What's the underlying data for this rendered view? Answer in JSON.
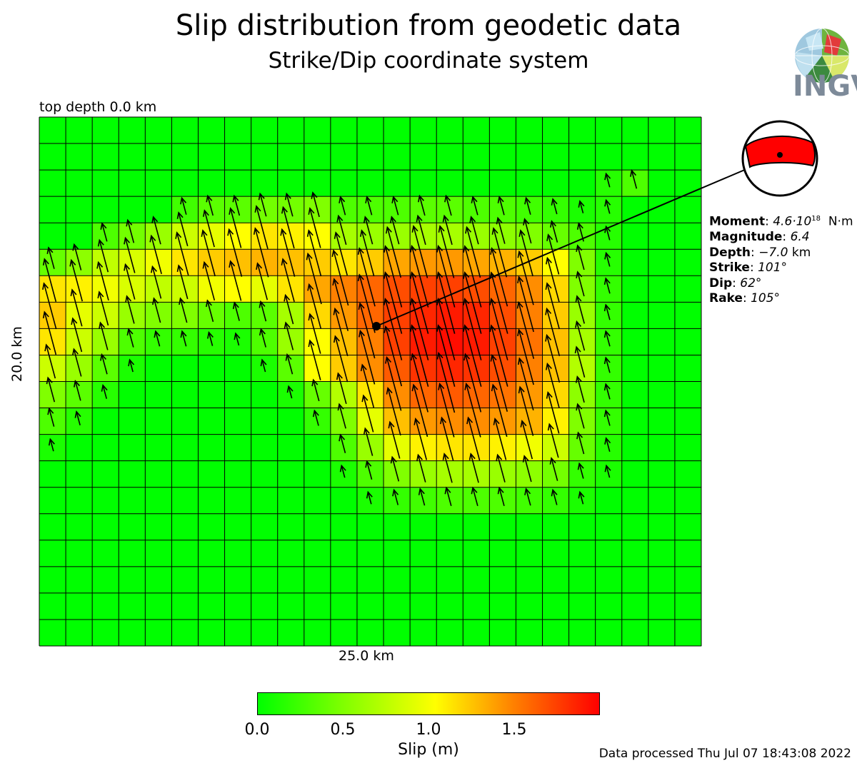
{
  "title": "Slip distribution from geodetic data",
  "subtitle": "Strike/Dip coordinate system",
  "top_depth_label": "top depth 0.0 km",
  "width_label": "25.0 km",
  "height_label": "20.0 km",
  "logo_text": "INGV",
  "info": {
    "moment_key": "Moment",
    "moment_mantissa": "4.6·10",
    "moment_exponent": "18",
    "moment_unit": "N·m",
    "magnitude_key": "Magnitude",
    "magnitude_value": "6.4",
    "depth_key": "Depth",
    "depth_value": "−7.0",
    "depth_unit": "km",
    "strike_key": "Strike",
    "strike_value": "101°",
    "dip_key": "Dip",
    "dip_value": "62°",
    "rake_key": "Rake",
    "rake_value": "105°"
  },
  "colorbar": {
    "label": "Slip (m)",
    "ticks": [
      "0.0",
      "0.5",
      "1.0",
      "1.5"
    ],
    "tick_values": [
      0,
      0.5,
      1.0,
      1.5
    ],
    "max": 2.0,
    "colors": [
      "#00ff00",
      "#80ff00",
      "#ffff00",
      "#ff8000",
      "#ff0000"
    ]
  },
  "footer": "Data processed Thu Jul 07 18:43:08 2022",
  "chart_data": {
    "type": "heatmap",
    "along_strike_km": 25.0,
    "along_dip_km": 20.0,
    "rows": 20,
    "cols": 25,
    "value_unit": "m",
    "rake_deg": 105,
    "hypocenter_cell": {
      "row": 8,
      "col": 12.7
    },
    "slip": [
      [
        0,
        0,
        0,
        0,
        0,
        0,
        0,
        0,
        0,
        0,
        0,
        0,
        0,
        0,
        0,
        0,
        0,
        0,
        0,
        0,
        0,
        0,
        0,
        0,
        0
      ],
      [
        0,
        0,
        0,
        0,
        0,
        0,
        0,
        0,
        0,
        0,
        0,
        0,
        0,
        0,
        0,
        0,
        0,
        0,
        0,
        0,
        0,
        0,
        0,
        0,
        0
      ],
      [
        0,
        0,
        0,
        0,
        0,
        0,
        0,
        0,
        0,
        0,
        0,
        0,
        0,
        0,
        0,
        0,
        0,
        0,
        0,
        0,
        0,
        0.15,
        0.3,
        0,
        0
      ],
      [
        0,
        0,
        0,
        0,
        0,
        0.25,
        0.35,
        0.35,
        0.45,
        0.45,
        0.5,
        0.3,
        0.3,
        0.3,
        0.35,
        0.35,
        0.3,
        0.3,
        0.25,
        0.2,
        0.1,
        0.15,
        0,
        0,
        0
      ],
      [
        0,
        0,
        0.3,
        0.45,
        0.6,
        0.8,
        0.9,
        1.0,
        1.1,
        1.05,
        1.0,
        0.65,
        0.6,
        0.6,
        0.65,
        0.65,
        0.6,
        0.55,
        0.5,
        0.4,
        0.3,
        0.15,
        0,
        0,
        0
      ],
      [
        0.4,
        0.55,
        0.75,
        0.85,
        0.95,
        1.1,
        1.2,
        1.25,
        1.3,
        1.25,
        1.2,
        1.1,
        1.2,
        1.35,
        1.4,
        1.4,
        1.35,
        1.3,
        1.2,
        1.0,
        0.5,
        0.15,
        0,
        0,
        0
      ],
      [
        1.1,
        1.05,
        0.95,
        0.85,
        0.75,
        0.8,
        0.95,
        1.0,
        0.9,
        1.1,
        1.35,
        1.5,
        1.6,
        1.7,
        1.75,
        1.75,
        1.7,
        1.6,
        1.45,
        1.15,
        0.5,
        0.2,
        0,
        0,
        0
      ],
      [
        1.2,
        0.9,
        0.8,
        0.6,
        0.5,
        0.5,
        0.4,
        0.3,
        0.35,
        0.65,
        1.15,
        1.4,
        1.6,
        1.75,
        1.85,
        1.9,
        1.85,
        1.7,
        1.5,
        1.2,
        0.6,
        0.2,
        0,
        0,
        0
      ],
      [
        1.1,
        0.8,
        0.6,
        0.3,
        0.2,
        0.2,
        0.15,
        0.1,
        0.3,
        0.6,
        1.0,
        1.25,
        1.5,
        1.75,
        1.9,
        1.95,
        1.9,
        1.75,
        1.55,
        1.25,
        0.65,
        0.2,
        0,
        0,
        0
      ],
      [
        0.8,
        0.6,
        0.35,
        0.1,
        0,
        0,
        0,
        0,
        0.1,
        0.35,
        1.0,
        1.2,
        1.45,
        1.65,
        1.8,
        1.85,
        1.8,
        1.7,
        1.5,
        1.25,
        0.7,
        0.2,
        0,
        0,
        0
      ],
      [
        0.5,
        0.35,
        0.15,
        0,
        0,
        0,
        0,
        0,
        0,
        0.1,
        0.4,
        0.7,
        1.1,
        1.45,
        1.6,
        1.65,
        1.6,
        1.55,
        1.4,
        1.15,
        0.55,
        0.2,
        0,
        0,
        0
      ],
      [
        0.3,
        0.15,
        0,
        0,
        0,
        0,
        0,
        0,
        0,
        0,
        0.2,
        0.5,
        0.9,
        1.25,
        1.4,
        1.45,
        1.45,
        1.4,
        1.3,
        1.05,
        0.5,
        0.2,
        0,
        0,
        0
      ],
      [
        0.1,
        0,
        0,
        0,
        0,
        0,
        0,
        0,
        0,
        0,
        0,
        0.3,
        0.6,
        0.9,
        1.05,
        1.1,
        1.1,
        1.05,
        0.95,
        0.8,
        0.4,
        0.15,
        0,
        0,
        0
      ],
      [
        0,
        0,
        0,
        0,
        0,
        0,
        0,
        0,
        0,
        0,
        0,
        0.1,
        0.3,
        0.5,
        0.6,
        0.65,
        0.65,
        0.6,
        0.55,
        0.45,
        0.2,
        0.1,
        0,
        0,
        0
      ],
      [
        0,
        0,
        0,
        0,
        0,
        0,
        0,
        0,
        0,
        0,
        0,
        0,
        0.1,
        0.2,
        0.25,
        0.3,
        0.3,
        0.3,
        0.25,
        0.2,
        0.1,
        0,
        0,
        0,
        0
      ],
      [
        0,
        0,
        0,
        0,
        0,
        0,
        0,
        0,
        0,
        0,
        0,
        0,
        0,
        0,
        0,
        0,
        0,
        0,
        0,
        0,
        0,
        0,
        0,
        0,
        0
      ],
      [
        0,
        0,
        0,
        0,
        0,
        0,
        0,
        0,
        0,
        0,
        0,
        0,
        0,
        0,
        0,
        0,
        0,
        0,
        0,
        0,
        0,
        0,
        0,
        0,
        0
      ],
      [
        0,
        0,
        0,
        0,
        0,
        0,
        0,
        0,
        0,
        0,
        0,
        0,
        0,
        0,
        0,
        0,
        0,
        0,
        0,
        0,
        0,
        0,
        0,
        0,
        0
      ],
      [
        0,
        0,
        0,
        0,
        0,
        0,
        0,
        0,
        0,
        0,
        0,
        0,
        0,
        0,
        0,
        0,
        0,
        0,
        0,
        0,
        0,
        0,
        0,
        0,
        0
      ],
      [
        0,
        0,
        0,
        0,
        0,
        0,
        0,
        0,
        0,
        0,
        0,
        0,
        0,
        0,
        0,
        0,
        0,
        0,
        0,
        0,
        0,
        0,
        0,
        0,
        0
      ]
    ]
  }
}
